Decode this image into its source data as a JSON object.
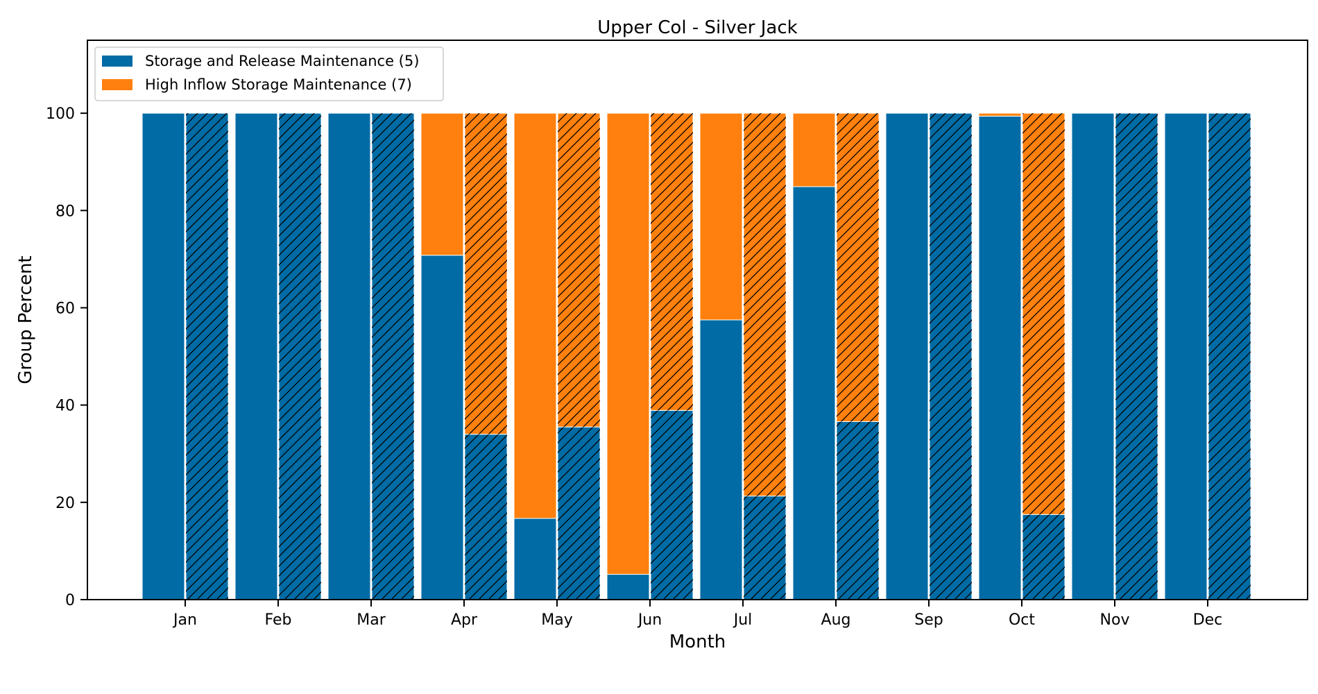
{
  "chart_data": {
    "type": "bar",
    "title": "Upper Col - Silver Jack",
    "xlabel": "Month",
    "ylabel": "Group Percent",
    "ylim": [
      0,
      115
    ],
    "yticks": [
      0,
      20,
      40,
      60,
      80,
      100
    ],
    "categories": [
      "Jan",
      "Feb",
      "Mar",
      "Apr",
      "May",
      "Jun",
      "Jul",
      "Aug",
      "Sep",
      "Oct",
      "Nov",
      "Dec"
    ],
    "stacked": true,
    "groups": [
      "solid",
      "hatched"
    ],
    "series": [
      {
        "name": "Storage and Release Maintenance (5)",
        "color": "#006ba4",
        "solid_values": [
          100,
          100,
          100,
          70.8,
          16.7,
          5.2,
          57.5,
          84.9,
          100,
          99.4,
          100,
          100
        ],
        "hatched_values": [
          100,
          100,
          100,
          34.0,
          35.5,
          38.9,
          21.3,
          36.6,
          100,
          17.5,
          100,
          100
        ]
      },
      {
        "name": "High Inflow Storage Maintenance (7)",
        "color": "#ff800e",
        "solid_values": [
          0,
          0,
          0,
          29.2,
          83.3,
          94.8,
          42.5,
          15.1,
          0,
          0.6,
          0,
          0
        ],
        "hatched_values": [
          0,
          0,
          0,
          66.0,
          64.5,
          61.1,
          78.7,
          63.4,
          0,
          82.5,
          0,
          0
        ]
      }
    ],
    "grid": false,
    "legend_position": "top-left"
  }
}
